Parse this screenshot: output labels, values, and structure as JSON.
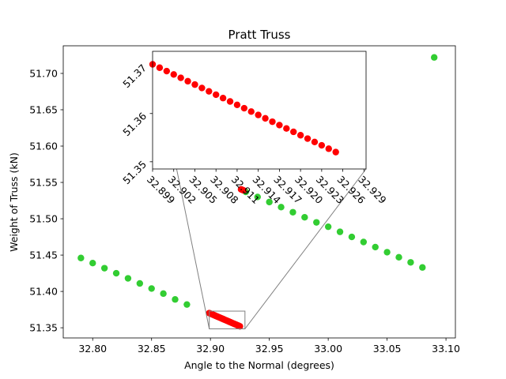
{
  "chart_data": {
    "type": "scatter",
    "title": "Pratt Truss",
    "xlabel": "Angle to the Normal (degrees)",
    "ylabel": "Weight of Truss (kN)",
    "xlim": [
      32.775,
      33.108
    ],
    "ylim": [
      51.336,
      51.738
    ],
    "xticks": [
      "32.80",
      "32.85",
      "32.90",
      "32.95",
      "33.00",
      "33.05",
      "33.10"
    ],
    "yticks": [
      "51.35",
      "51.40",
      "51.45",
      "51.50",
      "51.55",
      "51.60",
      "51.65",
      "51.70"
    ],
    "grid": false,
    "legend": "none",
    "colors": {
      "green": "#32cd32",
      "red": "#ff0000",
      "connector": "#808080"
    },
    "series": [
      {
        "color": "green",
        "x": [
          32.79,
          32.8,
          32.81,
          32.82,
          32.83,
          32.84,
          32.85,
          32.86,
          32.87,
          32.88,
          32.93,
          32.94,
          32.95,
          32.96,
          32.97,
          32.98,
          32.99,
          33.0,
          33.01,
          33.02,
          33.03,
          33.04,
          33.05,
          33.06,
          33.07,
          33.08,
          33.09
        ],
        "y": [
          51.446,
          51.439,
          51.432,
          51.425,
          51.418,
          51.411,
          51.404,
          51.397,
          51.389,
          51.382,
          51.537,
          51.53,
          51.523,
          51.516,
          51.509,
          51.502,
          51.495,
          51.489,
          51.482,
          51.475,
          51.468,
          51.461,
          51.454,
          51.447,
          51.44,
          51.433,
          51.722
        ]
      },
      {
        "color": "red",
        "x": [
          32.899,
          32.9,
          32.901,
          32.902,
          32.903,
          32.904,
          32.905,
          32.906,
          32.907,
          32.908,
          32.909,
          32.91,
          32.911,
          32.912,
          32.913,
          32.914,
          32.915,
          32.916,
          32.917,
          32.918,
          32.919,
          32.92,
          32.921,
          32.922,
          32.923,
          32.924,
          32.925,
          32.926,
          32.927,
          32.928
        ],
        "y": [
          51.3702,
          51.3695,
          51.3688,
          51.3681,
          51.3674,
          51.3667,
          51.366,
          51.3653,
          51.3646,
          51.3639,
          51.3632,
          51.3625,
          51.3618,
          51.3611,
          51.3604,
          51.3597,
          51.359,
          51.3583,
          51.3576,
          51.3569,
          51.3562,
          51.3555,
          51.3548,
          51.3541,
          51.3534,
          51.3527,
          51.352,
          51.5405,
          51.5398,
          51.5391
        ]
      }
    ],
    "inset": {
      "xlim": [
        32.899,
        32.9293
      ],
      "ylim": [
        51.3485,
        51.3729
      ],
      "xticks": [
        "32.899",
        "32.902",
        "32.905",
        "32.908",
        "32.911",
        "32.914",
        "32.917",
        "32.920",
        "32.923",
        "32.926",
        "32.929"
      ],
      "yticks": [
        "51.35",
        "51.36",
        "51.37"
      ],
      "zoom_box": {
        "xlim": [
          32.899,
          32.9293
        ],
        "ylim": [
          51.3485,
          51.3729
        ]
      },
      "color": "red",
      "x": [
        32.899,
        32.9,
        32.901,
        32.902,
        32.903,
        32.904,
        32.905,
        32.906,
        32.907,
        32.908,
        32.909,
        32.91,
        32.911,
        32.912,
        32.913,
        32.914,
        32.915,
        32.916,
        32.917,
        32.918,
        32.919,
        32.92,
        32.921,
        32.922,
        32.923,
        32.924,
        32.925
      ],
      "y": [
        51.3702,
        51.3695,
        51.3688,
        51.3681,
        51.3674,
        51.3667,
        51.366,
        51.3653,
        51.3646,
        51.3639,
        51.3632,
        51.3625,
        51.3618,
        51.3611,
        51.3604,
        51.3597,
        51.359,
        51.3583,
        51.3576,
        51.3569,
        51.3562,
        51.3555,
        51.3548,
        51.3541,
        51.3534,
        51.3527,
        51.352
      ]
    }
  }
}
